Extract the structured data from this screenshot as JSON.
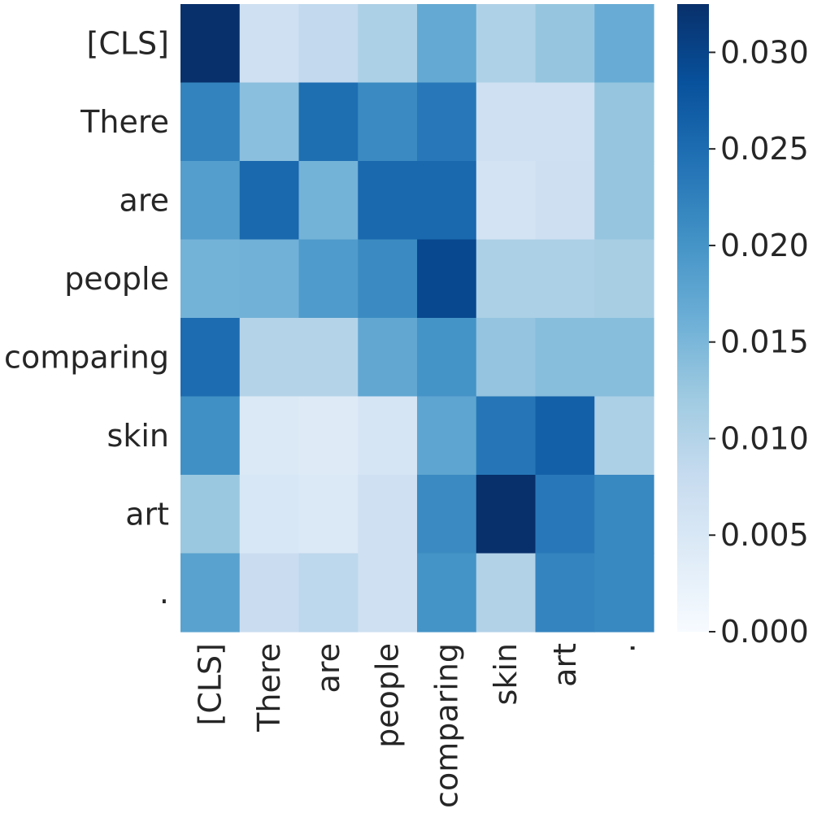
{
  "chart_data": {
    "type": "heatmap",
    "title": "",
    "xlabel": "",
    "ylabel": "",
    "x_categories": [
      "[CLS]",
      "There",
      "are",
      "people",
      "comparing",
      "skin",
      "art",
      "."
    ],
    "y_categories": [
      "[CLS]",
      "There",
      "are",
      "people",
      "comparing",
      "skin",
      "art",
      "."
    ],
    "values": [
      [
        0.033,
        0.0068,
        0.0085,
        0.0108,
        0.017,
        0.0105,
        0.0128,
        0.0165
      ],
      [
        0.0222,
        0.0138,
        0.0248,
        0.0212,
        0.0235,
        0.0068,
        0.0068,
        0.0128
      ],
      [
        0.0185,
        0.0255,
        0.0155,
        0.0255,
        0.0255,
        0.006,
        0.007,
        0.0128
      ],
      [
        0.0155,
        0.0158,
        0.019,
        0.0212,
        0.0295,
        0.0108,
        0.0108,
        0.0112
      ],
      [
        0.025,
        0.01,
        0.01,
        0.0172,
        0.02,
        0.013,
        0.014,
        0.014
      ],
      [
        0.0205,
        0.0045,
        0.004,
        0.0055,
        0.0175,
        0.0238,
        0.0265,
        0.0108
      ],
      [
        0.0125,
        0.005,
        0.0045,
        0.0068,
        0.0212,
        0.034,
        0.0235,
        0.0215
      ],
      [
        0.018,
        0.0075,
        0.009,
        0.0068,
        0.02,
        0.0102,
        0.022,
        0.0215
      ]
    ],
    "colorbar": {
      "min": 0.0,
      "max": 0.0325,
      "ticks": [
        0.0,
        0.005,
        0.01,
        0.015,
        0.02,
        0.025,
        0.03
      ],
      "tick_labels": [
        "0.000",
        "0.005",
        "0.010",
        "0.015",
        "0.020",
        "0.025",
        "0.030"
      ],
      "colormap": "Blues",
      "colormap_stops": [
        "#f7fbff",
        "#deebf7",
        "#c6dbef",
        "#9ecae1",
        "#6baed6",
        "#4292c6",
        "#2171b5",
        "#08519c",
        "#08306b"
      ]
    },
    "grid": false,
    "legend": "colorbar-right"
  }
}
